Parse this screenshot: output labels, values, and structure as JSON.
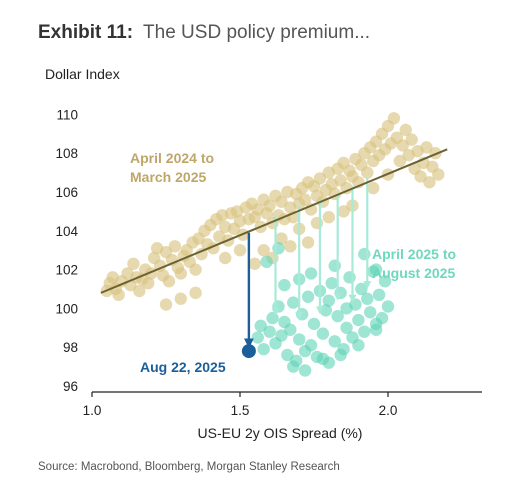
{
  "header": {
    "exhibit": "Exhibit 11:",
    "title": "The USD policy premium..."
  },
  "source": "Source: Macrobond, Bloomberg, Morgan Stanley Research",
  "colors": {
    "period1": "#d8c27e",
    "period2": "#5fd3b6",
    "arrow_period2": "#a8ead8",
    "latest": "#1a5e9a",
    "trend": "#6b6233",
    "label_period1": "#bfa76a",
    "label_period2": "#6ed8bd",
    "label_latest": "#1a5e9a"
  },
  "chart_data": {
    "type": "scatter",
    "title": "",
    "xlabel": "US-EU 2y OIS Spread (%)",
    "ylabel": "Dollar Index",
    "xlim": [
      1.0,
      2.3
    ],
    "ylim": [
      96,
      111
    ],
    "xticks": [
      "1.0",
      "1.5",
      "2.0"
    ],
    "xtick_values": [
      1.0,
      1.5,
      2.0
    ],
    "yticks": [
      "96",
      "98",
      "100",
      "102",
      "104",
      "106",
      "108",
      "110"
    ],
    "ytick_values": [
      96,
      98,
      100,
      102,
      104,
      106,
      108,
      110
    ],
    "grid": false,
    "trendline": {
      "x": [
        1.03,
        2.2
      ],
      "y": [
        100.8,
        108.2
      ]
    },
    "annotations": [
      {
        "text": [
          "April 2024 to",
          "March 2025"
        ],
        "series": "period1"
      },
      {
        "text": [
          "April 2025 to",
          "August 2025"
        ],
        "series": "period2"
      },
      {
        "text": [
          "Aug 22, 2025"
        ],
        "series": "latest"
      }
    ],
    "arrows_period2": [
      [
        1.62,
        104.8,
        99.8
      ],
      [
        1.7,
        105.3,
        99.6
      ],
      [
        1.77,
        105.6,
        99.9
      ],
      [
        1.83,
        105.9,
        100.6
      ],
      [
        1.88,
        106.3,
        100.5
      ],
      [
        1.93,
        106.7,
        101.2
      ]
    ],
    "arrow_latest": [
      1.53,
      103.9,
      98.2
    ],
    "series": [
      {
        "key": "period1",
        "points": [
          [
            1.05,
            100.9
          ],
          [
            1.06,
            101.3
          ],
          [
            1.07,
            101.6
          ],
          [
            1.08,
            101.0
          ],
          [
            1.09,
            100.7
          ],
          [
            1.1,
            101.4
          ],
          [
            1.12,
            101.8
          ],
          [
            1.13,
            101.2
          ],
          [
            1.14,
            102.3
          ],
          [
            1.15,
            101.6
          ],
          [
            1.16,
            100.9
          ],
          [
            1.17,
            101.5
          ],
          [
            1.18,
            102.0
          ],
          [
            1.19,
            101.3
          ],
          [
            1.2,
            101.8
          ],
          [
            1.21,
            102.6
          ],
          [
            1.22,
            103.1
          ],
          [
            1.23,
            102.2
          ],
          [
            1.24,
            101.7
          ],
          [
            1.25,
            102.9
          ],
          [
            1.26,
            101.4
          ],
          [
            1.27,
            102.5
          ],
          [
            1.28,
            103.2
          ],
          [
            1.29,
            102.1
          ],
          [
            1.3,
            101.8
          ],
          [
            1.31,
            102.7
          ],
          [
            1.32,
            103.0
          ],
          [
            1.33,
            102.4
          ],
          [
            1.34,
            103.4
          ],
          [
            1.35,
            102.0
          ],
          [
            1.36,
            103.6
          ],
          [
            1.37,
            102.8
          ],
          [
            1.38,
            104.0
          ],
          [
            1.39,
            103.3
          ],
          [
            1.4,
            104.3
          ],
          [
            1.41,
            103.1
          ],
          [
            1.42,
            104.6
          ],
          [
            1.43,
            103.7
          ],
          [
            1.44,
            104.8
          ],
          [
            1.45,
            104.2
          ],
          [
            1.46,
            103.5
          ],
          [
            1.47,
            104.9
          ],
          [
            1.48,
            104.1
          ],
          [
            1.49,
            105.0
          ],
          [
            1.5,
            104.5
          ],
          [
            1.51,
            103.8
          ],
          [
            1.52,
            105.2
          ],
          [
            1.53,
            104.6
          ],
          [
            1.54,
            105.4
          ],
          [
            1.55,
            104.7
          ],
          [
            1.56,
            105.1
          ],
          [
            1.57,
            104.2
          ],
          [
            1.58,
            105.6
          ],
          [
            1.59,
            104.9
          ],
          [
            1.6,
            105.3
          ],
          [
            1.61,
            104.4
          ],
          [
            1.62,
            105.8
          ],
          [
            1.63,
            104.8
          ],
          [
            1.64,
            105.5
          ],
          [
            1.65,
            104.6
          ],
          [
            1.66,
            106.0
          ],
          [
            1.67,
            105.2
          ],
          [
            1.68,
            104.7
          ],
          [
            1.69,
            105.9
          ],
          [
            1.7,
            105.4
          ],
          [
            1.71,
            106.2
          ],
          [
            1.72,
            105.6
          ],
          [
            1.73,
            106.5
          ],
          [
            1.74,
            105.1
          ],
          [
            1.75,
            106.3
          ],
          [
            1.76,
            105.8
          ],
          [
            1.77,
            106.7
          ],
          [
            1.78,
            105.5
          ],
          [
            1.79,
            106.1
          ],
          [
            1.8,
            107.0
          ],
          [
            1.81,
            106.4
          ],
          [
            1.82,
            105.9
          ],
          [
            1.83,
            107.2
          ],
          [
            1.84,
            106.6
          ],
          [
            1.85,
            107.5
          ],
          [
            1.86,
            106.2
          ],
          [
            1.87,
            107.1
          ],
          [
            1.88,
            106.8
          ],
          [
            1.89,
            107.7
          ],
          [
            1.9,
            106.5
          ],
          [
            1.91,
            107.4
          ],
          [
            1.92,
            108.0
          ],
          [
            1.93,
            107.0
          ],
          [
            1.94,
            108.3
          ],
          [
            1.95,
            107.6
          ],
          [
            1.96,
            108.6
          ],
          [
            1.97,
            107.9
          ],
          [
            1.98,
            109.0
          ],
          [
            1.99,
            108.2
          ],
          [
            2.0,
            109.4
          ],
          [
            2.01,
            108.5
          ],
          [
            2.02,
            109.8
          ],
          [
            2.03,
            108.8
          ],
          [
            2.04,
            107.6
          ],
          [
            2.05,
            108.4
          ],
          [
            2.06,
            109.2
          ],
          [
            2.07,
            107.9
          ],
          [
            2.08,
            108.7
          ],
          [
            2.09,
            107.2
          ],
          [
            2.1,
            108.1
          ],
          [
            2.11,
            106.8
          ],
          [
            2.12,
            107.5
          ],
          [
            2.13,
            108.3
          ],
          [
            2.14,
            106.5
          ],
          [
            2.15,
            107.3
          ],
          [
            2.16,
            108.0
          ],
          [
            2.17,
            106.9
          ],
          [
            1.55,
            102.3
          ],
          [
            1.58,
            103.0
          ],
          [
            1.61,
            102.6
          ],
          [
            1.64,
            103.6
          ],
          [
            1.67,
            103.2
          ],
          [
            1.7,
            104.1
          ],
          [
            1.73,
            103.4
          ],
          [
            1.76,
            104.4
          ],
          [
            1.85,
            105.0
          ],
          [
            1.88,
            105.3
          ],
          [
            1.35,
            100.8
          ],
          [
            1.3,
            100.5
          ],
          [
            1.25,
            100.2
          ],
          [
            1.45,
            102.6
          ],
          [
            1.5,
            103.0
          ],
          [
            1.95,
            106.2
          ],
          [
            2.0,
            106.9
          ],
          [
            1.8,
            104.7
          ]
        ]
      },
      {
        "key": "period2",
        "points": [
          [
            1.56,
            98.5
          ],
          [
            1.57,
            99.1
          ],
          [
            1.58,
            97.9
          ],
          [
            1.6,
            98.8
          ],
          [
            1.61,
            99.5
          ],
          [
            1.62,
            98.2
          ],
          [
            1.63,
            100.1
          ],
          [
            1.64,
            98.6
          ],
          [
            1.65,
            99.3
          ],
          [
            1.66,
            97.6
          ],
          [
            1.67,
            98.9
          ],
          [
            1.68,
            100.3
          ],
          [
            1.69,
            97.3
          ],
          [
            1.7,
            98.4
          ],
          [
            1.71,
            99.7
          ],
          [
            1.72,
            97.8
          ],
          [
            1.73,
            100.6
          ],
          [
            1.74,
            98.1
          ],
          [
            1.75,
            99.2
          ],
          [
            1.76,
            97.5
          ],
          [
            1.77,
            100.9
          ],
          [
            1.78,
            98.7
          ],
          [
            1.79,
            99.9
          ],
          [
            1.8,
            97.2
          ],
          [
            1.81,
            101.3
          ],
          [
            1.82,
            98.3
          ],
          [
            1.83,
            99.6
          ],
          [
            1.84,
            100.8
          ],
          [
            1.85,
            97.9
          ],
          [
            1.86,
            99.0
          ],
          [
            1.87,
            101.6
          ],
          [
            1.88,
            98.5
          ],
          [
            1.89,
            100.2
          ],
          [
            1.9,
            99.4
          ],
          [
            1.91,
            101.0
          ],
          [
            1.92,
            98.8
          ],
          [
            1.93,
            100.5
          ],
          [
            1.94,
            99.8
          ],
          [
            1.95,
            101.9
          ],
          [
            1.96,
            98.9
          ],
          [
            1.97,
            100.7
          ],
          [
            1.98,
            99.5
          ],
          [
            1.99,
            101.4
          ],
          [
            2.0,
            100.1
          ],
          [
            1.68,
            97.0
          ],
          [
            1.72,
            96.8
          ],
          [
            1.78,
            97.4
          ],
          [
            1.84,
            97.6
          ],
          [
            1.9,
            98.1
          ],
          [
            1.96,
            99.2
          ],
          [
            1.59,
            102.4
          ],
          [
            1.63,
            103.1
          ],
          [
            1.92,
            102.8
          ],
          [
            1.96,
            102.0
          ],
          [
            1.74,
            101.8
          ],
          [
            1.8,
            100.4
          ],
          [
            1.86,
            100.0
          ],
          [
            1.65,
            101.2
          ],
          [
            1.7,
            101.5
          ],
          [
            1.82,
            102.2
          ]
        ]
      },
      {
        "key": "latest",
        "points": [
          [
            1.53,
            97.8
          ]
        ]
      }
    ]
  }
}
